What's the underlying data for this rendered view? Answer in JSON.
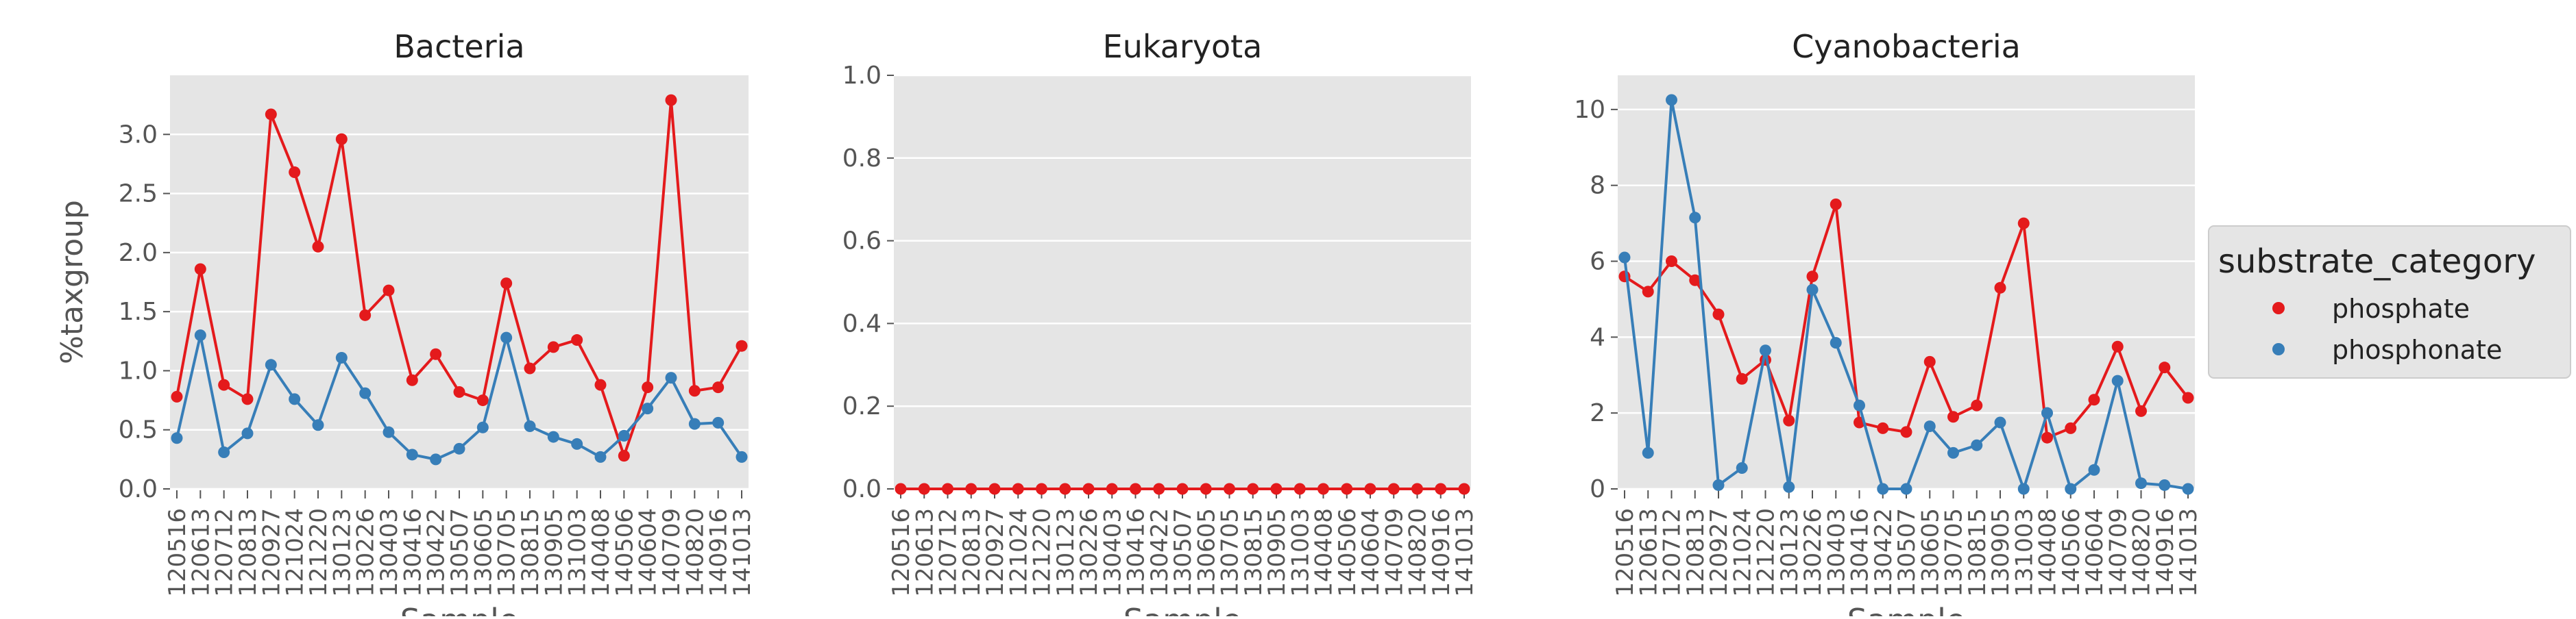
{
  "colors": {
    "phosphate": "#e41a1c",
    "phosphonate": "#377eb8",
    "panel_bg": "#e5e5e5",
    "grid": "#ffffff",
    "text": "#555555",
    "title": "#222222"
  },
  "legend": {
    "title": "substrate_category",
    "placement": "right",
    "entries": [
      "phosphate",
      "phosphonate"
    ]
  },
  "chart_data": [
    {
      "type": "line",
      "title": "Bacteria",
      "xlabel": "Sample",
      "ylabel": "%taxgroup",
      "ylim": [
        0,
        3.5
      ],
      "yticks": [
        0.0,
        0.5,
        1.0,
        1.5,
        2.0,
        2.5,
        3.0
      ],
      "ytick_labels": [
        "0.0",
        "0.5",
        "1.0",
        "1.5",
        "2.0",
        "2.5",
        "3.0"
      ],
      "grid": true,
      "categories": [
        "120516",
        "120613",
        "120712",
        "120813",
        "120927",
        "121024",
        "121220",
        "130123",
        "130226",
        "130403",
        "130416",
        "130422",
        "130507",
        "130605",
        "130705",
        "130815",
        "130905",
        "131003",
        "140408",
        "140506",
        "140604",
        "140709",
        "140820",
        "140916",
        "141013"
      ],
      "series": [
        {
          "name": "phosphate",
          "values": [
            0.78,
            1.86,
            0.88,
            0.76,
            3.17,
            2.68,
            2.05,
            2.96,
            1.47,
            1.68,
            0.92,
            1.14,
            0.82,
            0.75,
            1.74,
            1.02,
            1.2,
            1.26,
            0.88,
            0.28,
            0.86,
            3.29,
            0.83,
            0.86,
            1.21
          ]
        },
        {
          "name": "phosphonate",
          "values": [
            0.43,
            1.3,
            0.31,
            0.47,
            1.05,
            0.76,
            0.54,
            1.11,
            0.81,
            0.48,
            0.29,
            0.25,
            0.34,
            0.52,
            1.28,
            0.53,
            0.44,
            0.38,
            0.27,
            0.45,
            0.68,
            0.94,
            0.55,
            0.56,
            0.27
          ]
        }
      ]
    },
    {
      "type": "line",
      "title": "Eukaryota",
      "xlabel": "Sample",
      "ylabel": "",
      "ylim": [
        0,
        1.0
      ],
      "yticks": [
        0.0,
        0.2,
        0.4,
        0.6,
        0.8,
        1.0
      ],
      "ytick_labels": [
        "0.0",
        "0.2",
        "0.4",
        "0.6",
        "0.8",
        "1.0"
      ],
      "grid": true,
      "categories": [
        "120516",
        "120613",
        "120712",
        "120813",
        "120927",
        "121024",
        "121220",
        "130123",
        "130226",
        "130403",
        "130416",
        "130422",
        "130507",
        "130605",
        "130705",
        "130815",
        "130905",
        "131003",
        "140408",
        "140506",
        "140604",
        "140709",
        "140820",
        "140916",
        "141013"
      ],
      "series": [
        {
          "name": "phosphate",
          "values": [
            0,
            0,
            0,
            0,
            0,
            0,
            0,
            0,
            0,
            0,
            0,
            0,
            0,
            0,
            0,
            0,
            0,
            0,
            0,
            0,
            0,
            0,
            0,
            0,
            0
          ]
        }
      ]
    },
    {
      "type": "line",
      "title": "Cyanobacteria",
      "xlabel": "Sample",
      "ylabel": "",
      "ylim": [
        0,
        10.9
      ],
      "yticks": [
        0,
        2,
        4,
        6,
        8,
        10
      ],
      "ytick_labels": [
        "0",
        "2",
        "4",
        "6",
        "8",
        "10"
      ],
      "grid": true,
      "categories": [
        "120516",
        "120613",
        "120712",
        "120813",
        "120927",
        "121024",
        "121220",
        "130123",
        "130226",
        "130403",
        "130416",
        "130422",
        "130507",
        "130605",
        "130705",
        "130815",
        "130905",
        "131003",
        "140408",
        "140506",
        "140604",
        "140709",
        "140820",
        "140916",
        "141013"
      ],
      "series": [
        {
          "name": "phosphate",
          "values": [
            5.6,
            5.2,
            6.0,
            5.5,
            4.6,
            2.9,
            3.4,
            1.8,
            5.6,
            7.5,
            1.75,
            1.6,
            1.5,
            3.35,
            1.9,
            2.2,
            5.3,
            7.0,
            1.35,
            1.6,
            2.35,
            3.75,
            2.05,
            3.2,
            2.4
          ]
        },
        {
          "name": "phosphonate",
          "values": [
            6.1,
            0.95,
            10.25,
            7.15,
            0.1,
            0.55,
            3.65,
            0.05,
            5.25,
            3.85,
            2.2,
            0.0,
            0.0,
            1.65,
            0.95,
            1.15,
            1.75,
            0.0,
            2.0,
            0.0,
            0.5,
            2.85,
            0.15,
            0.1,
            0.0
          ]
        }
      ]
    }
  ]
}
